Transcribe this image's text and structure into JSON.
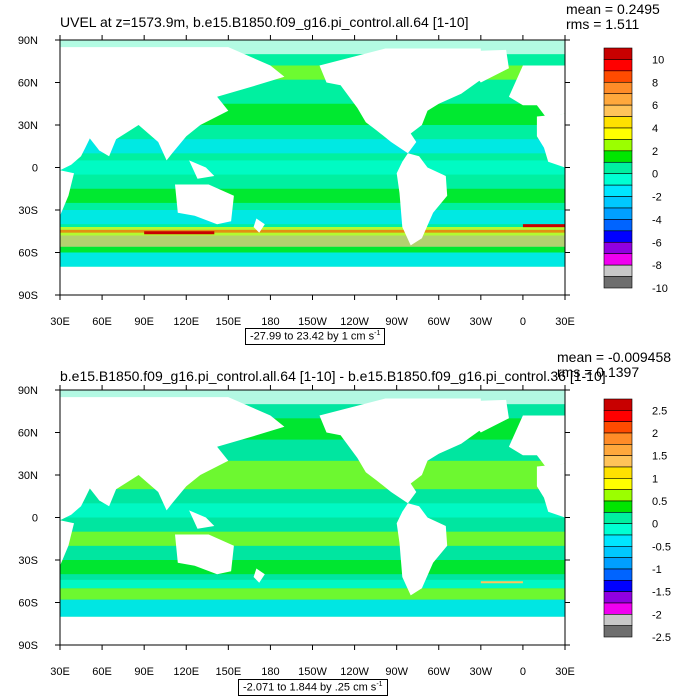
{
  "chart_data": [
    {
      "type": "heatmap",
      "title": "UVEL at z=1573.9m, b.e15.B1850.f09_g16.pi_control.all.64 [1-10]",
      "stats": {
        "mean": "mean = 0.2495",
        "rms": "rms = 1.511"
      },
      "range_label": {
        "text": "-27.99 to 23.42 by 1 cm s",
        "exp": "-1"
      },
      "x_ticks": [
        "30E",
        "60E",
        "90E",
        "120E",
        "150E",
        "180",
        "150W",
        "120W",
        "90W",
        "60W",
        "30W",
        "0",
        "30E"
      ],
      "y_ticks": [
        "90N",
        "60N",
        "30N",
        "0",
        "30S",
        "60S",
        "90S"
      ],
      "colorbar": {
        "labels": [
          "10",
          "8",
          "6",
          "4",
          "2",
          "0",
          "-2",
          "-4",
          "-6",
          "-8",
          "-10"
        ],
        "colors": [
          "#c80000",
          "#ff0000",
          "#ff4b00",
          "#ff8c28",
          "#ffa83c",
          "#ffc35a",
          "#ffe100",
          "#ffff00",
          "#9bff00",
          "#00e600",
          "#00f0a0",
          "#00ffd2",
          "#00e6ff",
          "#00c8ff",
          "#00a0ff",
          "#0064ff",
          "#0000ff",
          "#9100e0",
          "#f000f0",
          "#c8c8c8",
          "#6e6e6e"
        ]
      }
    },
    {
      "type": "heatmap",
      "title": "b.e15.B1850.f09_g16.pi_control.all.64 [1-10] - b.e15.B1850.f09_g16.pi_control.36 [1-10]",
      "stats": {
        "mean": "mean = -0.009458",
        "rms": "rms = 0.1397"
      },
      "range_label": {
        "text": "-2.071 to 1.844 by .25 cm s",
        "exp": "-1"
      },
      "x_ticks": [
        "30E",
        "60E",
        "90E",
        "120E",
        "150E",
        "180",
        "150W",
        "120W",
        "90W",
        "60W",
        "30W",
        "0",
        "30E"
      ],
      "y_ticks": [
        "90N",
        "60N",
        "30N",
        "0",
        "30S",
        "60S",
        "90S"
      ],
      "colorbar": {
        "labels": [
          "2.5",
          "2",
          "1.5",
          "1",
          "0.5",
          "0",
          "-0.5",
          "-1",
          "-1.5",
          "-2",
          "-2.5"
        ],
        "colors": [
          "#c80000",
          "#ff0000",
          "#ff4b00",
          "#ff8c28",
          "#ffa83c",
          "#ffc35a",
          "#ffe100",
          "#ffff00",
          "#9bff00",
          "#00e600",
          "#00f0a0",
          "#00ffd2",
          "#00e6ff",
          "#00c8ff",
          "#00a0ff",
          "#0064ff",
          "#0000ff",
          "#9100e0",
          "#f000f0",
          "#c8c8c8",
          "#6e6e6e"
        ]
      }
    }
  ]
}
